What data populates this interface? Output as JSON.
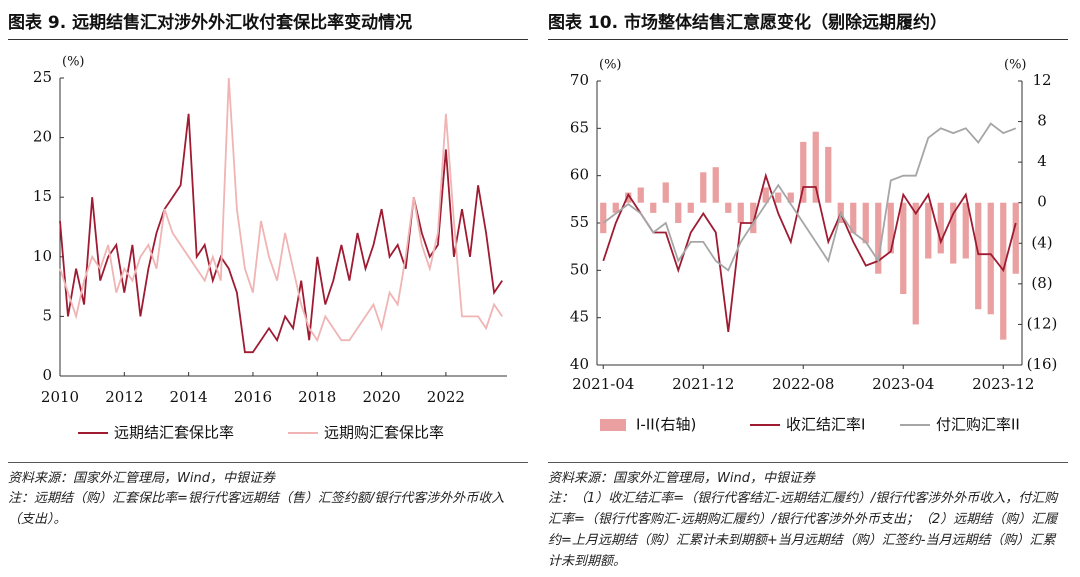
{
  "chart_data": [
    {
      "type": "line",
      "title": "图表 9. 远期结售汇对涉外外汇收付套保比率变动情况",
      "y_unit": "(%)",
      "x": [
        2010,
        2010.25,
        2010.5,
        2010.75,
        2011,
        2011.25,
        2011.5,
        2011.75,
        2012,
        2012.25,
        2012.5,
        2012.75,
        2013,
        2013.25,
        2013.5,
        2013.75,
        2014,
        2014.25,
        2014.5,
        2014.75,
        2015,
        2015.25,
        2015.5,
        2015.75,
        2016,
        2016.25,
        2016.5,
        2016.75,
        2017,
        2017.25,
        2017.5,
        2017.75,
        2018,
        2018.25,
        2018.5,
        2018.75,
        2019,
        2019.25,
        2019.5,
        2019.75,
        2020,
        2020.25,
        2020.5,
        2020.75,
        2021,
        2021.25,
        2021.5,
        2021.75,
        2022,
        2022.25,
        2022.5,
        2022.75,
        2023,
        2023.25,
        2023.5,
        2023.75
      ],
      "series": [
        {
          "name": "远期结汇套保比率",
          "color": "#9e1b32",
          "values": [
            13,
            5,
            9,
            6,
            15,
            8,
            10,
            11,
            7,
            11,
            5,
            9,
            12,
            14,
            15,
            16,
            22,
            10,
            11,
            8,
            10,
            9,
            7,
            2,
            2,
            3,
            4,
            3,
            5,
            4,
            8,
            3,
            10,
            6,
            8,
            11,
            8,
            12,
            9,
            11,
            14,
            10,
            11,
            9,
            15,
            12,
            10,
            11,
            19,
            10,
            14,
            10,
            16,
            12,
            7,
            8
          ]
        },
        {
          "name": "远期购汇套保比率",
          "color": "#f0b4b4",
          "values": [
            9,
            7,
            5,
            8,
            10,
            9,
            11,
            7,
            9,
            8,
            10,
            11,
            9,
            14,
            12,
            11,
            10,
            9,
            8,
            10,
            8,
            25,
            14,
            9,
            7,
            13,
            10,
            8,
            12,
            9,
            6,
            4,
            3,
            5,
            4,
            3,
            3,
            4,
            5,
            6,
            4,
            7,
            6,
            10,
            15,
            11,
            9,
            12,
            22,
            13,
            5,
            5,
            5,
            4,
            6,
            5
          ]
        }
      ],
      "xlim": [
        2010,
        2023.9
      ],
      "xticks": [
        2010,
        2012,
        2014,
        2016,
        2018,
        2020,
        2022
      ],
      "ylim": [
        0,
        25
      ],
      "yticks": [
        0,
        5,
        10,
        15,
        20,
        25
      ],
      "grid": false,
      "source": "资料来源：国家外汇管理局，Wind，中银证券",
      "note": "注：远期结（购）汇套保比率=银行代客远期结（售）汇签约额/银行代客涉外外币收入（支出）。"
    },
    {
      "type": "combo",
      "title": "图表 10. 市场整体结售汇意愿变化（剔除远期履约）",
      "y_unit": "(%)",
      "y2_unit": "(%)",
      "categories": [
        "2021-04",
        null,
        null,
        null,
        null,
        null,
        null,
        null,
        "2021-12",
        null,
        null,
        null,
        null,
        null,
        null,
        null,
        "2022-08",
        null,
        null,
        null,
        null,
        null,
        null,
        null,
        "2023-04",
        null,
        null,
        null,
        null,
        null,
        null,
        null,
        "2023-12",
        null
      ],
      "series": [
        {
          "name": "I-II(右轴)",
          "type": "bar",
          "axis": "y2",
          "color": "#eaa0a0",
          "values": [
            -3,
            -1,
            1,
            1.5,
            -1,
            2,
            -2,
            -1,
            3,
            3.5,
            -1,
            -2,
            -3,
            1.5,
            1,
            1,
            6,
            7,
            5.5,
            -2,
            -3,
            -4,
            -7,
            -5,
            -9,
            -12,
            -5.5,
            -5,
            -6,
            -5.5,
            -10.5,
            -11,
            -13.5,
            -7
          ]
        },
        {
          "name": "收汇结汇率I",
          "type": "line",
          "color": "#9e1b32",
          "values": [
            51,
            55,
            58,
            56,
            54,
            54,
            50,
            54,
            56,
            54,
            43.5,
            55,
            55,
            60,
            56,
            53,
            58.8,
            58.8,
            53,
            56,
            53,
            50.5,
            51,
            52,
            58,
            56,
            58,
            53,
            56,
            58,
            51.7,
            51.7,
            50,
            55
          ]
        },
        {
          "name": "付汇购汇率II",
          "type": "line",
          "color": "#a6a6a6",
          "values": [
            55,
            56,
            57,
            56,
            54,
            55,
            51,
            53,
            53,
            51,
            50,
            53,
            55,
            57,
            59,
            57,
            55,
            53,
            51,
            56,
            54,
            53,
            51,
            59.5,
            60,
            60,
            64,
            65,
            64.5,
            65,
            63.5,
            65.5,
            64.5,
            65
          ]
        }
      ],
      "ylim": [
        40,
        70
      ],
      "yticks": [
        40,
        45,
        50,
        55,
        60,
        65,
        70
      ],
      "y2lim": [
        -16,
        12
      ],
      "y2ticks": [
        {
          "value": -16,
          "label": "(16)"
        },
        {
          "value": -12,
          "label": "(12)"
        },
        {
          "value": -8,
          "label": "(8)"
        },
        {
          "value": -4,
          "label": "(4)"
        },
        0,
        4,
        8,
        12
      ],
      "grid": false,
      "source": "资料来源：国家外汇管理局，Wind，中银证券",
      "note": "注：（1）收汇结汇率=（银行代客结汇-远期结汇履约）/银行代客涉外外币收入，付汇购汇率=（银行代客购汇-远期购汇履约）/银行代客涉外外币支出；（2）远期结（购）汇履约=上月远期结（购）汇累计未到期额+当月远期结（购）汇签约-当月远期结（购）汇累计未到期额。"
    }
  ]
}
